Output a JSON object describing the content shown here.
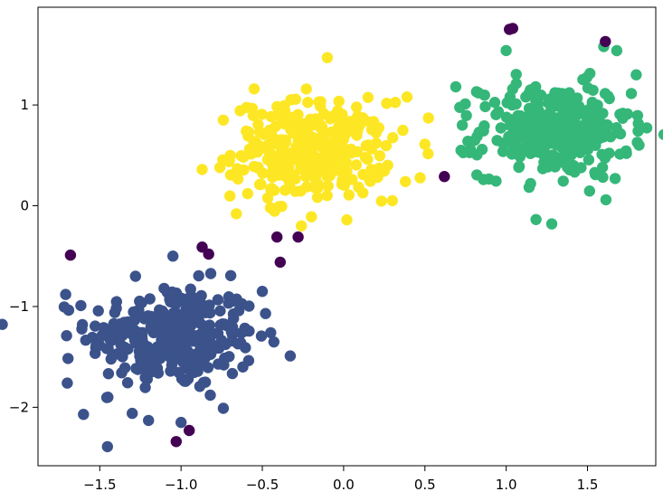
{
  "chart_data": {
    "type": "scatter",
    "title": "",
    "xlabel": "",
    "ylabel": "",
    "xlim": [
      -1.88,
      1.92
    ],
    "ylim": [
      -2.58,
      1.97
    ],
    "grid": false,
    "legend": "none",
    "x_ticks": [
      -1.5,
      -1.0,
      -0.5,
      0.0,
      0.5,
      1.0,
      1.5
    ],
    "x_tick_labels": [
      "−1.5",
      "−1.0",
      "−0.5",
      "0.0",
      "0.5",
      "1.0",
      "1.5"
    ],
    "y_ticks": [
      -2,
      -1,
      0,
      1
    ],
    "y_tick_labels": [
      "−2",
      "−1",
      "0",
      "1"
    ],
    "series": [
      {
        "color": "#3b528b",
        "center": [
          -1.05,
          -1.3
        ],
        "spread": 0.26,
        "count": 300,
        "extremes": [
          [
            -1.6,
            -2.07
          ],
          [
            -1.7,
            -1.76
          ],
          [
            -1.71,
            -0.88
          ],
          [
            -1.28,
            -0.7
          ],
          [
            -1.05,
            -0.5
          ],
          [
            -0.5,
            -0.85
          ],
          [
            -0.48,
            -1.07
          ],
          [
            -0.65,
            -1.37
          ],
          [
            -0.62,
            -1.6
          ],
          [
            -1.2,
            -2.13
          ],
          [
            -1.0,
            -2.15
          ],
          [
            -1.3,
            -2.06
          ],
          [
            -0.74,
            -2.01
          ],
          [
            -0.82,
            -1.88
          ],
          [
            -1.45,
            -1.9
          ]
        ]
      },
      {
        "color": "#fde725",
        "center": [
          -0.2,
          0.55
        ],
        "spread": 0.24,
        "count": 300,
        "extremes": [
          [
            -0.87,
            0.36
          ],
          [
            -0.74,
            0.85
          ],
          [
            -0.66,
            -0.08
          ],
          [
            -0.26,
            -0.2
          ],
          [
            -0.1,
            1.47
          ],
          [
            0.2,
            0.62
          ],
          [
            0.39,
            1.08
          ],
          [
            0.5,
            0.61
          ],
          [
            0.38,
            0.24
          ],
          [
            -0.55,
            1.16
          ],
          [
            0.3,
            0.05
          ],
          [
            -0.45,
            -0.02
          ]
        ]
      },
      {
        "color": "#35b779",
        "center": [
          1.3,
          0.75
        ],
        "spread": 0.23,
        "count": 300,
        "extremes": [
          [
            0.69,
            1.18
          ],
          [
            0.73,
            0.8
          ],
          [
            0.86,
            0.26
          ],
          [
            1.15,
            0.22
          ],
          [
            1.28,
            -0.18
          ],
          [
            1.6,
            1.58
          ],
          [
            1.8,
            1.3
          ],
          [
            1.67,
            0.27
          ],
          [
            1.74,
            0.52
          ],
          [
            1.0,
            1.54
          ],
          [
            0.83,
            1.12
          ],
          [
            0.78,
            0.56
          ]
        ]
      },
      {
        "color": "#440154",
        "points": [
          [
            -1.68,
            -0.49
          ],
          [
            -0.87,
            -0.41
          ],
          [
            -0.83,
            -0.48
          ],
          [
            -0.41,
            -0.31
          ],
          [
            -0.39,
            -0.56
          ],
          [
            -0.28,
            -0.31
          ],
          [
            0.62,
            0.29
          ],
          [
            1.02,
            1.75
          ],
          [
            1.04,
            1.76
          ],
          [
            1.61,
            1.63
          ],
          [
            -1.03,
            -2.34
          ],
          [
            -0.95,
            -2.23
          ]
        ]
      }
    ]
  }
}
